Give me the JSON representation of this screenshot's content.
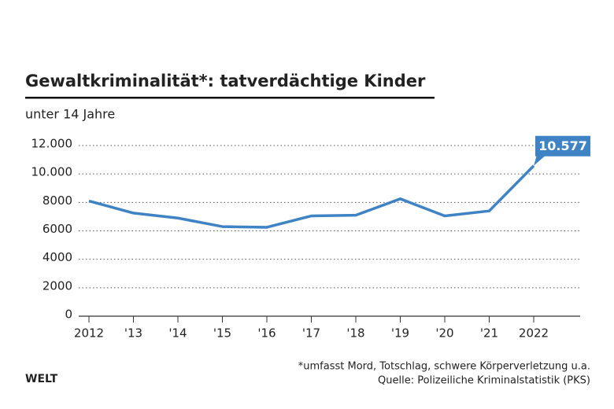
{
  "chart_data": {
    "type": "line",
    "title": "Gewaltkriminalität*: tatverdächtige Kinder",
    "subtitle": "unter 14 Jahre",
    "categories": [
      "2012",
      "'13",
      "'14",
      "'15",
      "'16",
      "'17",
      "'18",
      "'19",
      "'20",
      "'21",
      "2022"
    ],
    "series": [
      {
        "name": "tatverdächtige Kinder",
        "color": "#3f83c4",
        "values": [
          8100,
          7250,
          6900,
          6300,
          6250,
          7050,
          7100,
          8250,
          7050,
          7400,
          10577
        ],
        "value_labels": [
          null,
          null,
          null,
          null,
          null,
          null,
          null,
          null,
          null,
          null,
          "10.577"
        ]
      }
    ],
    "ylim": [
      0,
      12000
    ],
    "yticks": [
      0,
      2000,
      4000,
      6000,
      8000,
      {
        "value": 10000,
        "label": "10.000"
      },
      {
        "value": 12000,
        "label": "12.000"
      }
    ],
    "grid": true,
    "footnote": "*umfasst Mord, Totschlag, schwere Körperverletzung u.a.",
    "source": "Quelle: Polizeiliche Kriminalstatistik (PKS)",
    "brand": "WELT"
  }
}
